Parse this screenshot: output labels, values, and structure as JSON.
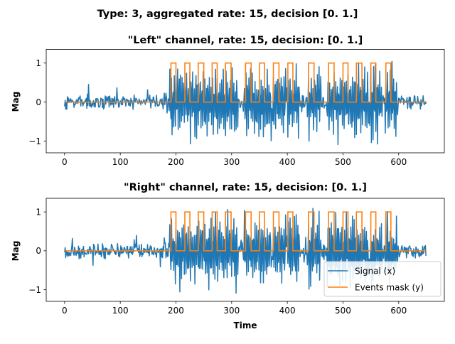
{
  "figure": {
    "suptitle": "Type: 3, aggregated rate: 15, decision [0. 1.]"
  },
  "colors": {
    "signal": "#1f77b4",
    "mask": "#ff7f0e",
    "axis": "#000000"
  },
  "legend": {
    "signal_label": "Signal (x)",
    "mask_label": "Events mask (y)"
  },
  "chart_data": [
    {
      "type": "line",
      "title": "\"Left\" channel, rate: 15, decision: [0. 1.]",
      "xlabel": "",
      "ylabel": "Mag",
      "xlim": [
        -33,
        682
      ],
      "ylim": [
        -1.3,
        1.35
      ],
      "xticks": [
        0,
        100,
        200,
        300,
        400,
        500,
        600
      ],
      "xtick_labels": [
        "0",
        "100",
        "200",
        "300",
        "400",
        "500",
        "600"
      ],
      "yticks": [
        -1,
        0,
        1
      ],
      "ytick_labels": [
        "−1",
        "0",
        "1"
      ],
      "grid": false,
      "legend": "none",
      "signal": {
        "name": "Signal (x)",
        "length": 650,
        "noise_amplitude": 0.22,
        "event_amplitude": 1.1,
        "seed": 7
      },
      "events": [
        [
          191,
          200
        ],
        [
          216,
          225
        ],
        [
          240,
          250
        ],
        [
          265,
          274
        ],
        [
          289,
          299
        ],
        [
          325,
          335
        ],
        [
          350,
          359
        ],
        [
          375,
          385
        ],
        [
          401,
          410
        ],
        [
          438,
          448
        ],
        [
          474,
          484
        ],
        [
          500,
          509
        ],
        [
          524,
          534
        ],
        [
          550,
          559
        ],
        [
          577,
          586
        ]
      ],
      "series": [
        {
          "name": "Signal (x)",
          "role": "signal"
        },
        {
          "name": "Events mask (y)",
          "role": "mask"
        }
      ]
    },
    {
      "type": "line",
      "title": "\"Right\" channel, rate: 15, decision: [0. 1.]",
      "xlabel": "Time",
      "ylabel": "Mag",
      "xlim": [
        -33,
        682
      ],
      "ylim": [
        -1.3,
        1.35
      ],
      "xticks": [
        0,
        100,
        200,
        300,
        400,
        500,
        600
      ],
      "xtick_labels": [
        "0",
        "100",
        "200",
        "300",
        "400",
        "500",
        "600"
      ],
      "yticks": [
        -1,
        0,
        1
      ],
      "ytick_labels": [
        "−1",
        "0",
        "1"
      ],
      "grid": false,
      "legend": "lower-right",
      "signal": {
        "name": "Signal (x)",
        "length": 650,
        "noise_amplitude": 0.22,
        "event_amplitude": 1.1,
        "seed": 19
      },
      "events": [
        [
          191,
          200
        ],
        [
          216,
          225
        ],
        [
          240,
          250
        ],
        [
          265,
          274
        ],
        [
          289,
          299
        ],
        [
          325,
          335
        ],
        [
          350,
          359
        ],
        [
          375,
          385
        ],
        [
          401,
          410
        ],
        [
          438,
          448
        ],
        [
          474,
          484
        ],
        [
          500,
          509
        ],
        [
          524,
          534
        ],
        [
          550,
          559
        ],
        [
          577,
          586
        ]
      ],
      "series": [
        {
          "name": "Signal (x)",
          "role": "signal"
        },
        {
          "name": "Events mask (y)",
          "role": "mask"
        }
      ]
    }
  ]
}
